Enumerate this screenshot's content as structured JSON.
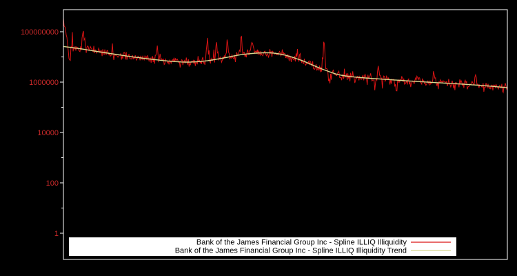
{
  "chart_data": {
    "type": "line",
    "title": "",
    "x_axis": {
      "label": "",
      "tick_labels_visible": false
    },
    "y_axis": {
      "label": "",
      "scale": "log",
      "tick_values": [
        1,
        100,
        10000,
        1000000,
        100000000
      ],
      "tick_labels": [
        "1",
        "100",
        "10000",
        "1000000",
        "100000000"
      ],
      "minor_tick_logs": [
        1,
        3,
        5,
        7
      ],
      "range_log10": [
        -1,
        8.85
      ]
    },
    "series": [
      {
        "name": "Bank of the James Financial Group Inc - Spline ILLIQ Illiquidity",
        "color": "#dc1414",
        "style": "noisy"
      },
      {
        "name": "Bank of the James Financial Group Inc - Spline ILLIQ Illiquidity Trend",
        "color": "#d8d88f",
        "style": "smooth"
      }
    ],
    "trend_points": {
      "x": [
        0,
        0.04,
        0.08,
        0.12,
        0.16,
        0.2,
        0.24,
        0.28,
        0.32,
        0.36,
        0.4,
        0.44,
        0.47,
        0.5,
        0.54,
        0.58,
        0.62,
        0.66,
        0.7,
        0.75,
        0.8,
        0.85,
        0.9,
        0.95,
        1.0
      ],
      "v": [
        26000000,
        21000000,
        16000000,
        12500000,
        9800000,
        8000000,
        6700000,
        6100000,
        6800000,
        9000000,
        12500000,
        14500000,
        14800000,
        12000000,
        7000000,
        3400000,
        1900000,
        1550000,
        1380000,
        1200000,
        1050000,
        930000,
        830000,
        720000,
        600000
      ]
    },
    "noise": {
      "seed": 20240042,
      "sigma_decades": 0.085,
      "spike_prob": 0.05,
      "spike_max_decades": 0.5,
      "n_points": 644,
      "start_log": 8.4,
      "start_n": 9,
      "spikes": [
        {
          "x": 0.013,
          "mag": -0.75
        },
        {
          "x": 0.045,
          "mag": 0.7
        },
        {
          "x": 0.21,
          "mag": 0.4
        },
        {
          "x": 0.325,
          "mag": 0.8
        },
        {
          "x": 0.345,
          "mag": 0.55
        },
        {
          "x": 0.37,
          "mag": 0.5
        },
        {
          "x": 0.4,
          "mag": 0.6
        },
        {
          "x": 0.425,
          "mag": 0.5
        },
        {
          "x": 0.587,
          "mag": 1.1
        },
        {
          "x": 0.6,
          "mag": -0.5
        },
        {
          "x": 0.71,
          "mag": 0.4
        },
        {
          "x": 0.75,
          "mag": -0.35
        },
        {
          "x": 0.835,
          "mag": 0.45
        },
        {
          "x": 0.93,
          "mag": 0.35
        }
      ]
    },
    "legend_position": "bottom-center"
  },
  "legend": {
    "entries": [
      {
        "label": "Bank of the James Financial Group Inc - Spline ILLIQ Illiquidity"
      },
      {
        "label": "Bank of the James Financial Group Inc - Spline ILLIQ Illiquidity Trend"
      }
    ]
  },
  "colors": {
    "background": "#000000",
    "plot_background": "#000000",
    "plot_border": "#ffffff",
    "tick_label": "#cd2a2a",
    "tick_mark": "#ffffff",
    "legend_bg": "#ffffff",
    "legend_text": "#000000"
  }
}
